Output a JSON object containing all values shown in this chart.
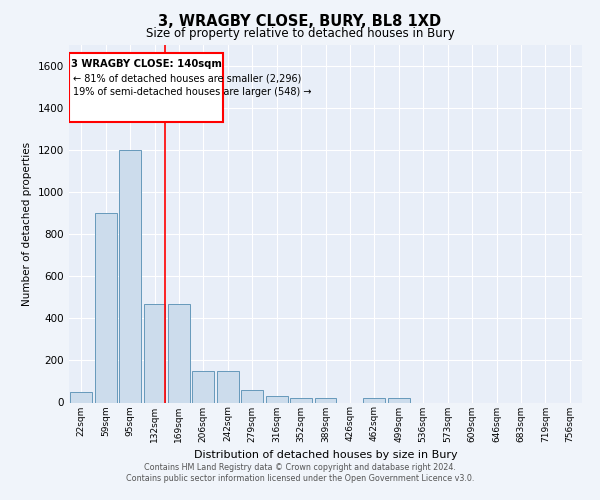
{
  "title": "3, WRAGBY CLOSE, BURY, BL8 1XD",
  "subtitle": "Size of property relative to detached houses in Bury",
  "xlabel": "Distribution of detached houses by size in Bury",
  "ylabel": "Number of detached properties",
  "categories": [
    "22sqm",
    "59sqm",
    "95sqm",
    "132sqm",
    "169sqm",
    "206sqm",
    "242sqm",
    "279sqm",
    "316sqm",
    "352sqm",
    "389sqm",
    "426sqm",
    "462sqm",
    "499sqm",
    "536sqm",
    "573sqm",
    "609sqm",
    "646sqm",
    "683sqm",
    "719sqm",
    "756sqm"
  ],
  "values": [
    50,
    900,
    1200,
    470,
    470,
    150,
    150,
    60,
    30,
    20,
    20,
    0,
    20,
    20,
    0,
    0,
    0,
    0,
    0,
    0,
    0
  ],
  "bar_color": "#ccdcec",
  "bar_edge_color": "#6699bb",
  "red_line_x": 3.42,
  "ylim": [
    0,
    1700
  ],
  "yticks": [
    0,
    200,
    400,
    600,
    800,
    1000,
    1200,
    1400,
    1600
  ],
  "annotation_title": "3 WRAGBY CLOSE: 140sqm",
  "annotation_line1": "← 81% of detached houses are smaller (2,296)",
  "annotation_line2": "19% of semi-detached houses are larger (548) →",
  "footer1": "Contains HM Land Registry data © Crown copyright and database right 2024.",
  "footer2": "Contains public sector information licensed under the Open Government Licence v3.0.",
  "bg_color": "#f0f4fa",
  "plot_bg_color": "#e8eef8"
}
